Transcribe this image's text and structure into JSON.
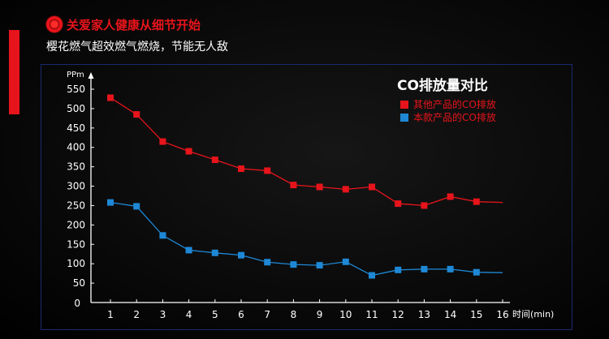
{
  "header": {
    "title": "关爱家人健康从细节开始",
    "subtitle": "樱花燃气超效燃气燃烧，节能无人敌"
  },
  "colors": {
    "accent": "#e8141b",
    "series_other": "#e8141b",
    "series_this": "#1e88d6",
    "axis": "#ffffff",
    "frame": "#1a2a6e"
  },
  "chart_data": {
    "type": "line",
    "title": "CO排放量对比",
    "ylabel": "PPm",
    "xlabel": "时间(min)",
    "ylim": [
      0,
      550
    ],
    "yticks": [
      0,
      50,
      100,
      150,
      200,
      250,
      300,
      350,
      400,
      450,
      500,
      550
    ],
    "x": [
      1,
      2,
      3,
      4,
      5,
      6,
      7,
      8,
      9,
      10,
      11,
      12,
      13,
      14,
      15,
      16
    ],
    "legend_position": "top-right",
    "grid": false,
    "series": [
      {
        "name": "其他产品的CO排放",
        "color": "#e8141b",
        "values": [
          528,
          485,
          415,
          390,
          368,
          345,
          340,
          303,
          298,
          292,
          298,
          255,
          250,
          273,
          260,
          258
        ],
        "markers": [
          true,
          true,
          true,
          true,
          true,
          true,
          true,
          true,
          true,
          true,
          true,
          true,
          true,
          true,
          true,
          false
        ]
      },
      {
        "name": "本款产品的CO排放",
        "color": "#1e88d6",
        "values": [
          258,
          248,
          173,
          135,
          128,
          122,
          104,
          98,
          96,
          105,
          70,
          84,
          86,
          86,
          78,
          77
        ],
        "markers": [
          true,
          true,
          true,
          true,
          true,
          true,
          true,
          true,
          true,
          true,
          true,
          true,
          true,
          true,
          true,
          false
        ]
      }
    ]
  }
}
